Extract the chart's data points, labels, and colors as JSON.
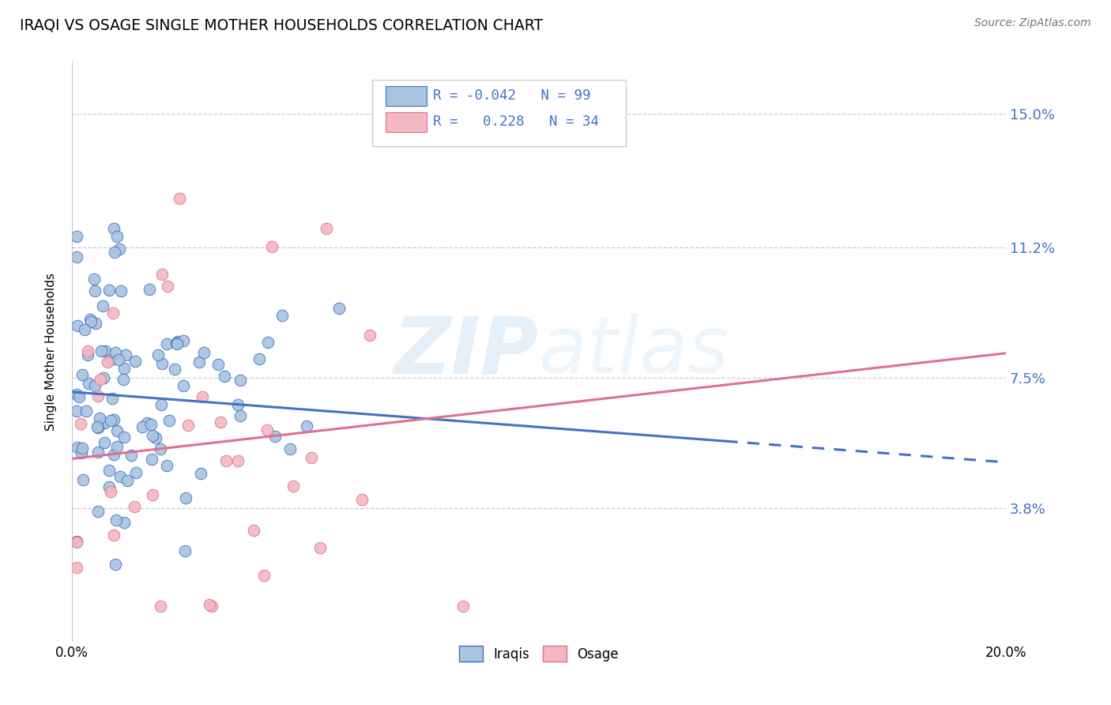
{
  "title": "IRAQI VS OSAGE SINGLE MOTHER HOUSEHOLDS CORRELATION CHART",
  "source": "Source: ZipAtlas.com",
  "ylabel": "Single Mother Households",
  "xlim": [
    0.0,
    0.2
  ],
  "ylim": [
    0.0,
    0.165
  ],
  "yticks": [
    0.038,
    0.075,
    0.112,
    0.15
  ],
  "ytick_labels": [
    "3.8%",
    "7.5%",
    "11.2%",
    "15.0%"
  ],
  "xticks": [
    0.0,
    0.04,
    0.08,
    0.12,
    0.16,
    0.2
  ],
  "xtick_labels": [
    "0.0%",
    "",
    "",
    "",
    "",
    "20.0%"
  ],
  "legend_Iraqi_R": "-0.042",
  "legend_Iraqi_N": "99",
  "legend_Osage_R": "0.228",
  "legend_Osage_N": "34",
  "Iraqi_color": "#a8c4e0",
  "Osage_color": "#f4b8c1",
  "trendline_Iraqi_color": "#4472c4",
  "trendline_Osage_color": "#e07090",
  "background_color": "#ffffff",
  "watermark": "ZIPatlas",
  "trendline_Iraqi_x0": 0.0,
  "trendline_Iraqi_y0": 0.071,
  "trendline_Iraqi_x1": 0.14,
  "trendline_Iraqi_y1": 0.057,
  "trendline_Iraqi_dash_x0": 0.14,
  "trendline_Iraqi_dash_y0": 0.057,
  "trendline_Iraqi_dash_x1": 0.2,
  "trendline_Iraqi_dash_y1": 0.051,
  "trendline_Osage_x0": 0.0,
  "trendline_Osage_y0": 0.052,
  "trendline_Osage_x1": 0.2,
  "trendline_Osage_y1": 0.082
}
